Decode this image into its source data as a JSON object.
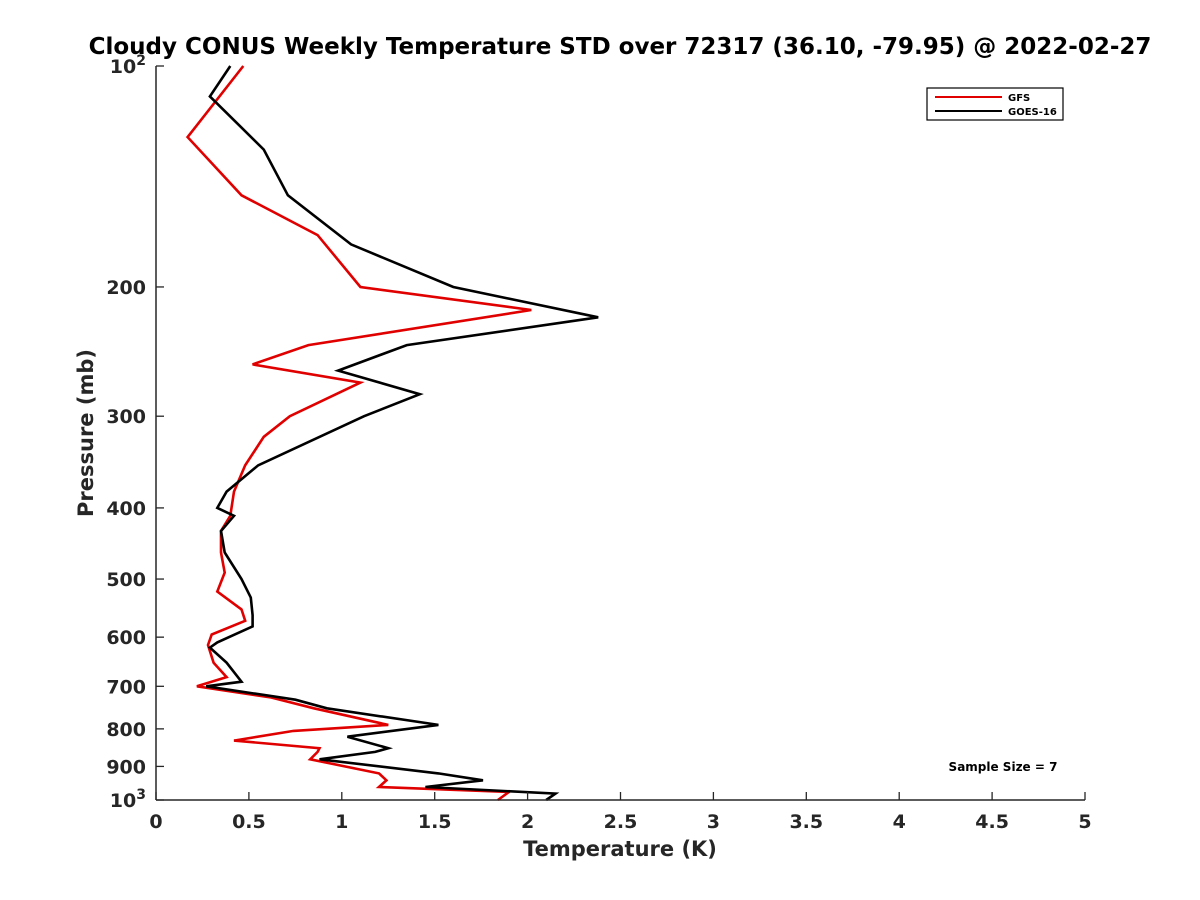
{
  "chart_data": {
    "type": "line",
    "title": "Cloudy CONUS Weekly Temperature STD over 72317 (36.10, -79.95) @ 2022-02-27",
    "xlabel": "Temperature (K)",
    "ylabel": "Pressure (mb)",
    "xlim": [
      0,
      5
    ],
    "ylim": [
      100,
      1000
    ],
    "y_scale": "log",
    "y_reversed": true,
    "x_ticks": [
      "0",
      "0.5",
      "1",
      "1.5",
      "2",
      "2.5",
      "3",
      "3.5",
      "4",
      "4.5",
      "5"
    ],
    "y_ticks": [
      {
        "value": 200,
        "label": "200"
      },
      {
        "value": 300,
        "label": "300"
      },
      {
        "value": 400,
        "label": "400"
      },
      {
        "value": 500,
        "label": "500"
      },
      {
        "value": 600,
        "label": "600"
      },
      {
        "value": 700,
        "label": "700"
      },
      {
        "value": 800,
        "label": "800"
      },
      {
        "value": 900,
        "label": "900"
      }
    ],
    "y_power_ticks": [
      {
        "value": 100,
        "base": "10",
        "exp": "2"
      },
      {
        "value": 1000,
        "base": "10",
        "exp": "3"
      }
    ],
    "legend": {
      "placement": "top-right"
    },
    "annotation": "Sample Size = 7",
    "series": [
      {
        "name": "GFS",
        "color": "#e00000",
        "points": [
          [
            0.47,
            100
          ],
          [
            0.17,
            125
          ],
          [
            0.46,
            150
          ],
          [
            0.87,
            170
          ],
          [
            1.1,
            200
          ],
          [
            2.02,
            215
          ],
          [
            0.82,
            240
          ],
          [
            0.52,
            255
          ],
          [
            1.1,
            270
          ],
          [
            0.72,
            300
          ],
          [
            0.58,
            320
          ],
          [
            0.48,
            350
          ],
          [
            0.42,
            380
          ],
          [
            0.4,
            410
          ],
          [
            0.35,
            430
          ],
          [
            0.35,
            460
          ],
          [
            0.37,
            490
          ],
          [
            0.33,
            520
          ],
          [
            0.46,
            550
          ],
          [
            0.48,
            570
          ],
          [
            0.3,
            595
          ],
          [
            0.28,
            615
          ],
          [
            0.31,
            650
          ],
          [
            0.38,
            680
          ],
          [
            0.22,
            700
          ],
          [
            0.62,
            725
          ],
          [
            0.85,
            750
          ],
          [
            1.25,
            790
          ],
          [
            0.74,
            805
          ],
          [
            0.42,
            830
          ],
          [
            0.88,
            850
          ],
          [
            0.87,
            860
          ],
          [
            0.83,
            880
          ],
          [
            1.2,
            920
          ],
          [
            1.24,
            940
          ],
          [
            1.2,
            960
          ],
          [
            1.9,
            975
          ],
          [
            1.84,
            1000
          ]
        ]
      },
      {
        "name": "GOES-16",
        "color": "#000000",
        "points": [
          [
            0.4,
            100
          ],
          [
            0.29,
            110
          ],
          [
            0.58,
            130
          ],
          [
            0.71,
            150
          ],
          [
            1.05,
            175
          ],
          [
            1.6,
            200
          ],
          [
            2.38,
            220
          ],
          [
            1.35,
            240
          ],
          [
            0.98,
            260
          ],
          [
            1.42,
            280
          ],
          [
            1.12,
            300
          ],
          [
            0.55,
            350
          ],
          [
            0.38,
            380
          ],
          [
            0.33,
            400
          ],
          [
            0.42,
            410
          ],
          [
            0.35,
            430
          ],
          [
            0.37,
            460
          ],
          [
            0.46,
            500
          ],
          [
            0.51,
            530
          ],
          [
            0.52,
            560
          ],
          [
            0.52,
            580
          ],
          [
            0.33,
            610
          ],
          [
            0.29,
            620
          ],
          [
            0.38,
            650
          ],
          [
            0.46,
            690
          ],
          [
            0.27,
            700
          ],
          [
            0.75,
            730
          ],
          [
            0.92,
            750
          ],
          [
            1.52,
            790
          ],
          [
            1.03,
            820
          ],
          [
            1.25,
            850
          ],
          [
            1.18,
            860
          ],
          [
            0.88,
            880
          ],
          [
            1.52,
            920
          ],
          [
            1.76,
            940
          ],
          [
            1.45,
            960
          ],
          [
            2.15,
            980
          ],
          [
            2.1,
            1000
          ]
        ]
      }
    ]
  }
}
